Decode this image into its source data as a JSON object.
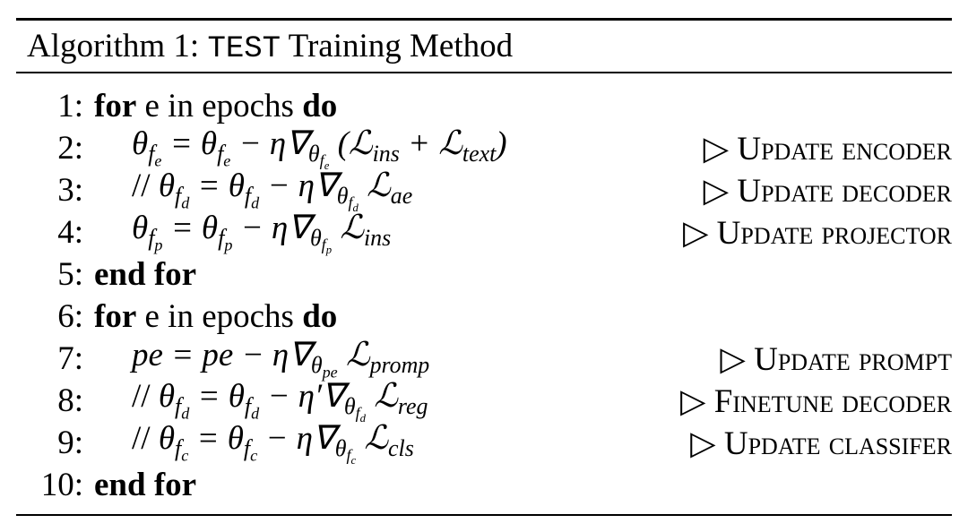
{
  "algorithm": {
    "label": "Algorithm 1:",
    "name": "TEST",
    "title": "Training Method",
    "lines": [
      {
        "number": "1:",
        "keyword": "for",
        "condition": "e in epochs",
        "keyword2": "do"
      },
      {
        "number": "2:",
        "formula": [
          "θ",
          {
            "sub": [
              "f",
              {
                "sub": [
                  "e"
                ]
              }
            ]
          },
          " = θ",
          {
            "sub": [
              "f",
              {
                "sub": [
                  "e"
                ]
              }
            ]
          },
          " − η∇",
          {
            "sub": [
              "θ",
              {
                "sub": [
                  "f",
                  {
                    "sub": [
                      "e"
                    ]
                  }
                ]
              }
            ]
          },
          " (ℒ",
          {
            "sub": [
              "ins"
            ]
          },
          " + ℒ",
          {
            "sub": [
              "text"
            ]
          },
          ")"
        ],
        "comment": "▷ Update encoder"
      },
      {
        "number": "3:",
        "prefix": "//",
        "formula": [
          "θ",
          {
            "sub": [
              "f",
              {
                "sub": [
                  "d"
                ]
              }
            ]
          },
          " = θ",
          {
            "sub": [
              "f",
              {
                "sub": [
                  "d"
                ]
              }
            ]
          },
          " − η∇",
          {
            "sub": [
              "θ",
              {
                "sub": [
                  "f",
                  {
                    "sub": [
                      "d"
                    ]
                  }
                ]
              }
            ]
          },
          " ℒ",
          {
            "sub": [
              "ae"
            ]
          }
        ],
        "comment": "▷ Update decoder"
      },
      {
        "number": "4:",
        "formula": [
          "θ",
          {
            "sub": [
              "f",
              {
                "sub": [
                  "p"
                ]
              }
            ]
          },
          " = θ",
          {
            "sub": [
              "f",
              {
                "sub": [
                  "p"
                ]
              }
            ]
          },
          " − η∇",
          {
            "sub": [
              "θ",
              {
                "sub": [
                  "f",
                  {
                    "sub": [
                      "p"
                    ]
                  }
                ]
              }
            ]
          },
          " ℒ",
          {
            "sub": [
              "ins"
            ]
          }
        ],
        "comment": "▷ Update projector"
      },
      {
        "number": "5:",
        "keyword": "end for"
      },
      {
        "number": "6:",
        "keyword": "for",
        "condition": "e in epochs",
        "keyword2": "do"
      },
      {
        "number": "7:",
        "formula": [
          "pe = pe − η∇",
          {
            "sub": [
              "θ",
              {
                "sub": [
                  "pe"
                ]
              }
            ]
          },
          " ℒ",
          {
            "sub": [
              "promp"
            ]
          }
        ],
        "comment": "▷ Update prompt"
      },
      {
        "number": "8:",
        "prefix": "//",
        "formula": [
          "θ",
          {
            "sub": [
              "f",
              {
                "sub": [
                  "d"
                ]
              }
            ]
          },
          " = θ",
          {
            "sub": [
              "f",
              {
                "sub": [
                  "d"
                ]
              }
            ]
          },
          " − η′∇",
          {
            "sub": [
              "θ",
              {
                "sub": [
                  "f",
                  {
                    "sub": [
                      "d"
                    ]
                  }
                ]
              }
            ]
          },
          " ℒ",
          {
            "sub": [
              "reg"
            ]
          }
        ],
        "comment": "▷ Finetune decoder"
      },
      {
        "number": "9:",
        "prefix": "//",
        "formula": [
          "θ",
          {
            "sub": [
              "f",
              {
                "sub": [
                  "c"
                ]
              }
            ]
          },
          " = θ",
          {
            "sub": [
              "f",
              {
                "sub": [
                  "c"
                ]
              }
            ]
          },
          " − η∇",
          {
            "sub": [
              "θ",
              {
                "sub": [
                  "f",
                  {
                    "sub": [
                      "c"
                    ]
                  }
                ]
              }
            ]
          },
          " ℒ",
          {
            "sub": [
              "cls"
            ]
          }
        ],
        "comment": "▷ Update classifer"
      },
      {
        "number": "10:",
        "keyword": "end for"
      }
    ]
  }
}
